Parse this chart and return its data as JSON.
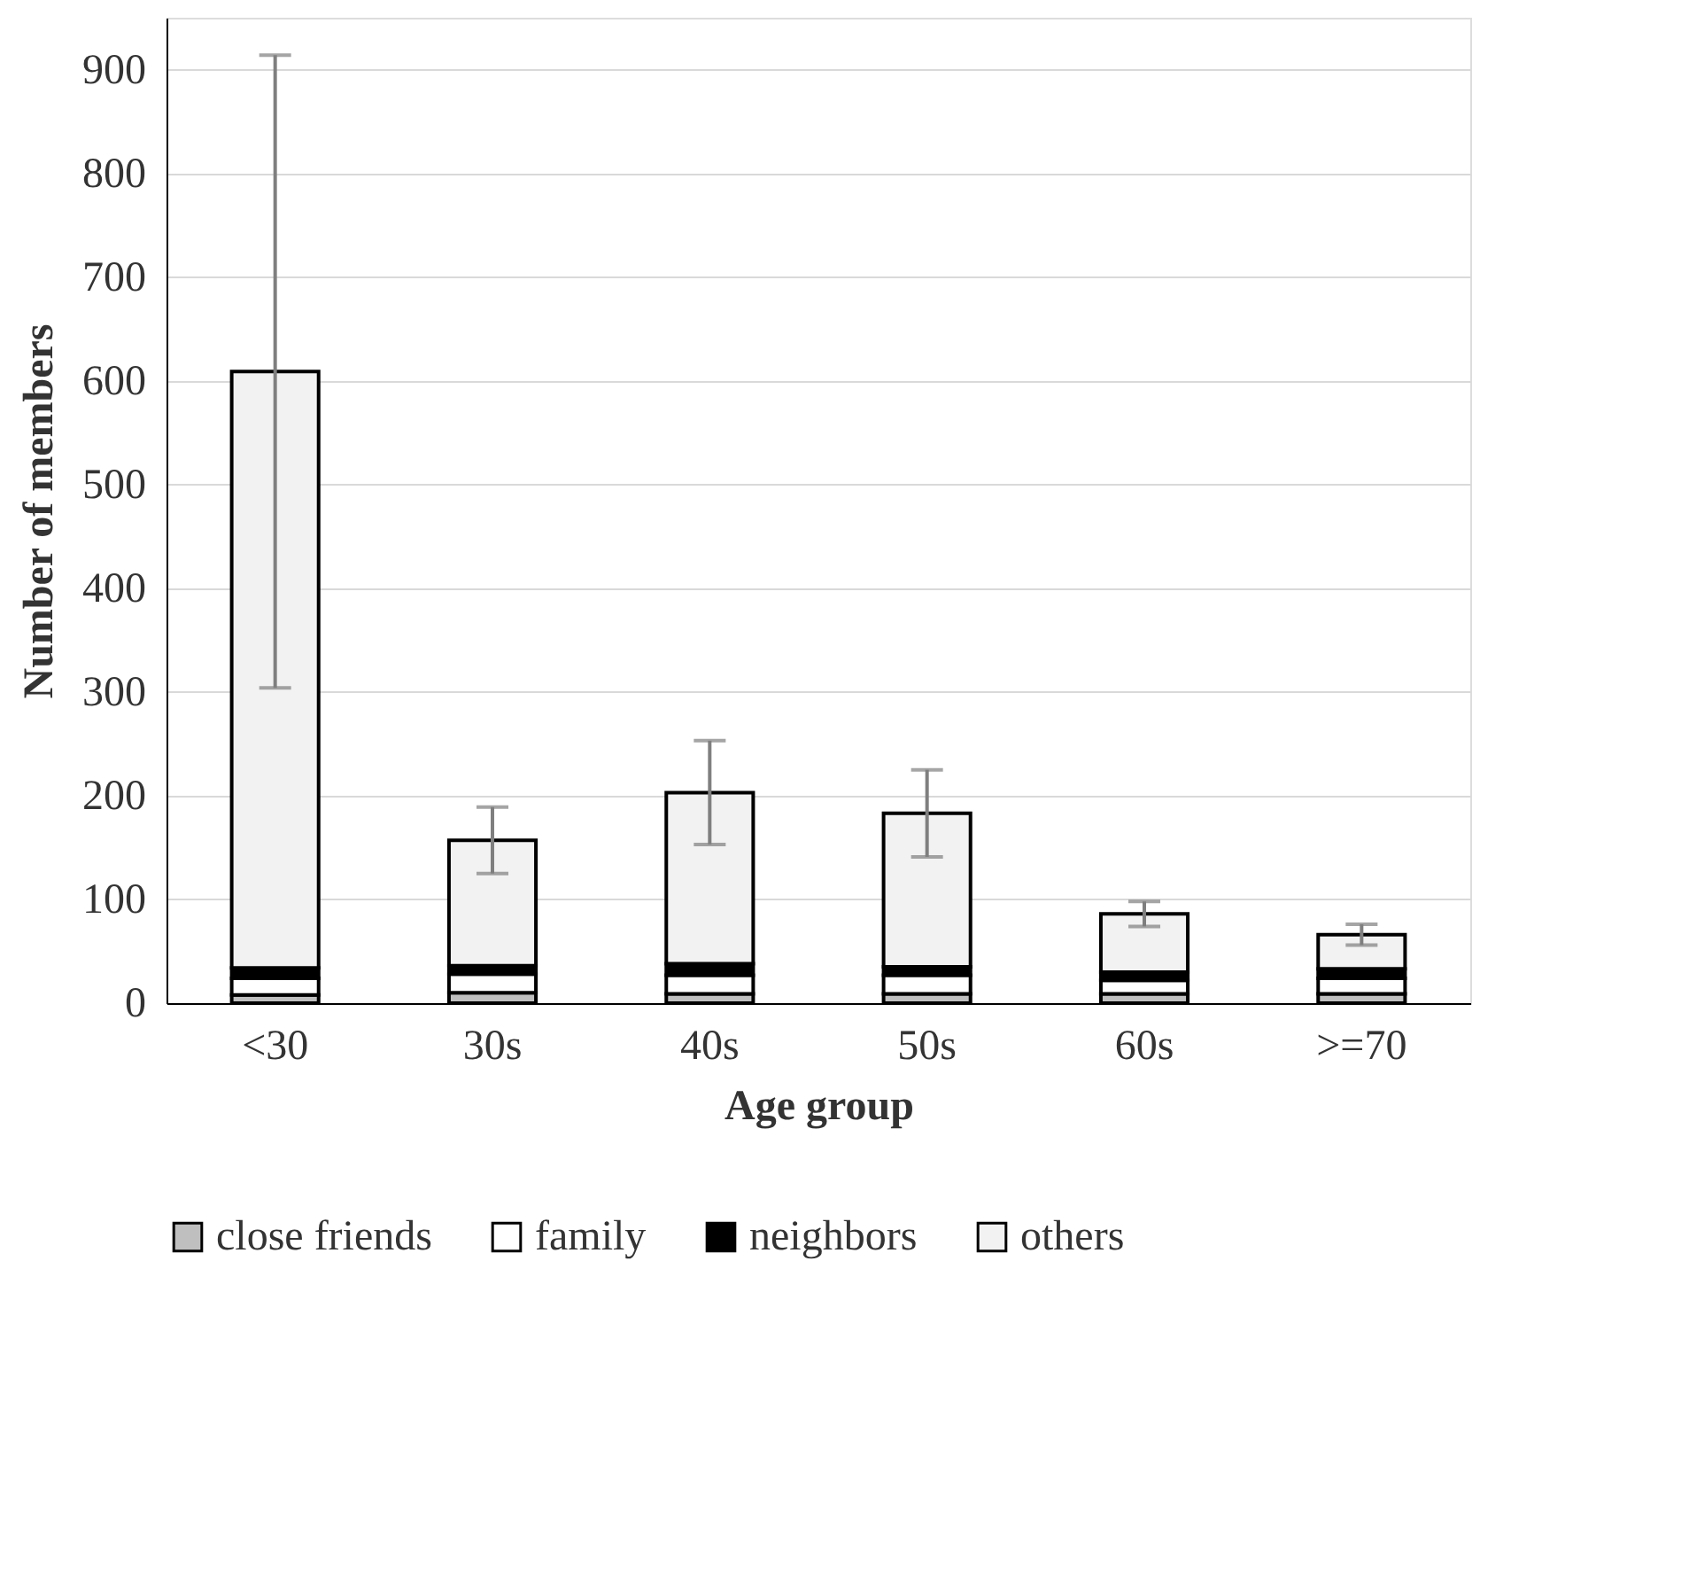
{
  "chart_data": {
    "type": "bar",
    "stacked": true,
    "xlabel": "Age group",
    "ylabel": "Number of members",
    "categories": [
      "<30",
      "30s",
      "40s",
      "50s",
      "60s",
      ">=70"
    ],
    "series": [
      {
        "name": "close friends",
        "color": "#bfbfbf",
        "values": [
          8,
          10,
          9,
          9,
          9,
          9
        ]
      },
      {
        "name": "family",
        "color": "#ffffff",
        "values": [
          16,
          18,
          18,
          18,
          13,
          15
        ]
      },
      {
        "name": "neighbors",
        "color": "#000000",
        "values": [
          10,
          8,
          11,
          8,
          8,
          9
        ]
      },
      {
        "name": "others",
        "color": "#f2f2f2",
        "values": [
          575,
          121,
          165,
          148,
          56,
          33
        ],
        "errors": [
          305,
          32,
          50,
          42,
          12,
          10
        ]
      }
    ],
    "ylim": [
      0,
      950
    ],
    "yticks": [
      0,
      100,
      200,
      300,
      400,
      500,
      600,
      700,
      800,
      900
    ],
    "grid": "y",
    "legend": "bottom"
  }
}
